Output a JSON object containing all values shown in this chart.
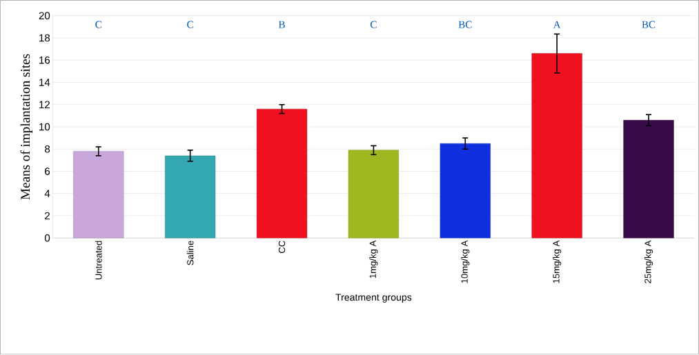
{
  "chart_data": {
    "type": "bar",
    "xlabel": "Treatment groups",
    "ylabel": "Means of implantation  sites",
    "categories": [
      "Untreated",
      "Saline",
      "CC",
      "1mg/kg A",
      "10mg/kg A",
      "15mg/kg A",
      "25mg/kg A"
    ],
    "values": [
      7.8,
      7.4,
      11.6,
      7.9,
      8.5,
      16.6,
      10.6
    ],
    "errors": [
      0.4,
      0.5,
      0.4,
      0.4,
      0.5,
      1.75,
      0.5
    ],
    "colors": [
      "#c8a8dc",
      "#33a8b0",
      "#f01020",
      "#a0b820",
      "#1030e0",
      "#f01020",
      "#380a48"
    ],
    "ylim": [
      0,
      20
    ],
    "yticks": [
      0,
      2,
      4,
      6,
      8,
      10,
      12,
      14,
      16,
      18,
      20
    ],
    "grid": "y",
    "annotations": [
      "C",
      "C",
      "B",
      "C",
      "BC",
      "A",
      "BC"
    ]
  }
}
